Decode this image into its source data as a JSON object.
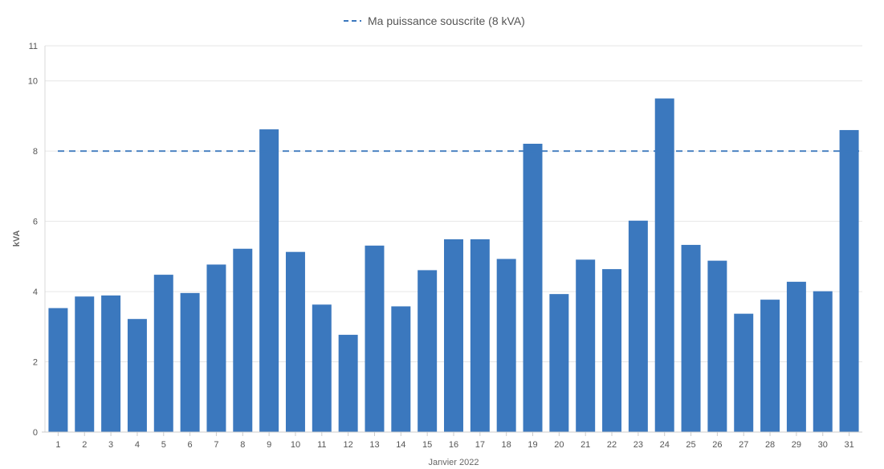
{
  "chart_data": {
    "type": "bar",
    "xlabel": "Janvier 2022",
    "ylabel": "kVA",
    "ylim": [
      0,
      11
    ],
    "y_ticks": [
      0,
      2,
      4,
      6,
      8,
      10,
      11
    ],
    "grid": true,
    "legend_position": "top-center",
    "bar_color": "#3b78be",
    "categories": [
      "1",
      "2",
      "3",
      "4",
      "5",
      "6",
      "7",
      "8",
      "9",
      "10",
      "11",
      "12",
      "13",
      "14",
      "15",
      "16",
      "17",
      "18",
      "19",
      "20",
      "21",
      "22",
      "23",
      "24",
      "25",
      "26",
      "27",
      "28",
      "29",
      "30",
      "31"
    ],
    "series": [
      {
        "values": [
          3.53,
          3.86,
          3.89,
          3.22,
          4.48,
          3.96,
          4.77,
          5.22,
          8.62,
          5.13,
          3.63,
          2.77,
          5.31,
          3.58,
          4.61,
          5.49,
          5.49,
          4.93,
          8.21,
          3.93,
          4.91,
          4.64,
          6.02,
          9.5,
          5.33,
          4.88,
          3.37,
          3.77,
          4.28,
          4.01,
          8.6
        ]
      }
    ],
    "reference_line": {
      "name": "Ma puissance souscrite (8 kVA)",
      "value": 8,
      "color": "#3b78be",
      "style": "dashed"
    }
  }
}
